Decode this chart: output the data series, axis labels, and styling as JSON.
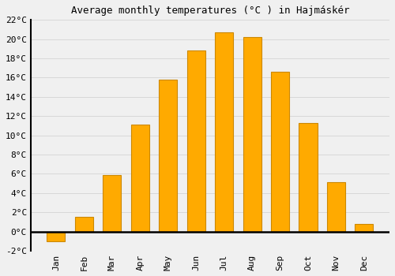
{
  "title": "Average monthly temperatures (°C ) in Hajmáskér",
  "months": [
    "Jan",
    "Feb",
    "Mar",
    "Apr",
    "May",
    "Jun",
    "Jul",
    "Aug",
    "Sep",
    "Oct",
    "Nov",
    "Dec"
  ],
  "values": [
    -1.0,
    1.5,
    5.9,
    11.1,
    15.8,
    18.8,
    20.7,
    20.2,
    16.6,
    11.3,
    5.1,
    0.8
  ],
  "bar_color": "#FFAA00",
  "bar_edge_color": "#CC8800",
  "ylim": [
    -2,
    22
  ],
  "yticks": [
    -2,
    0,
    2,
    4,
    6,
    8,
    10,
    12,
    14,
    16,
    18,
    20,
    22
  ],
  "background_color": "#f0f0f0",
  "plot_bg_color": "#f0f0f0",
  "grid_color": "#d8d8d8",
  "title_fontsize": 9,
  "tick_fontsize": 8,
  "font_family": "monospace"
}
